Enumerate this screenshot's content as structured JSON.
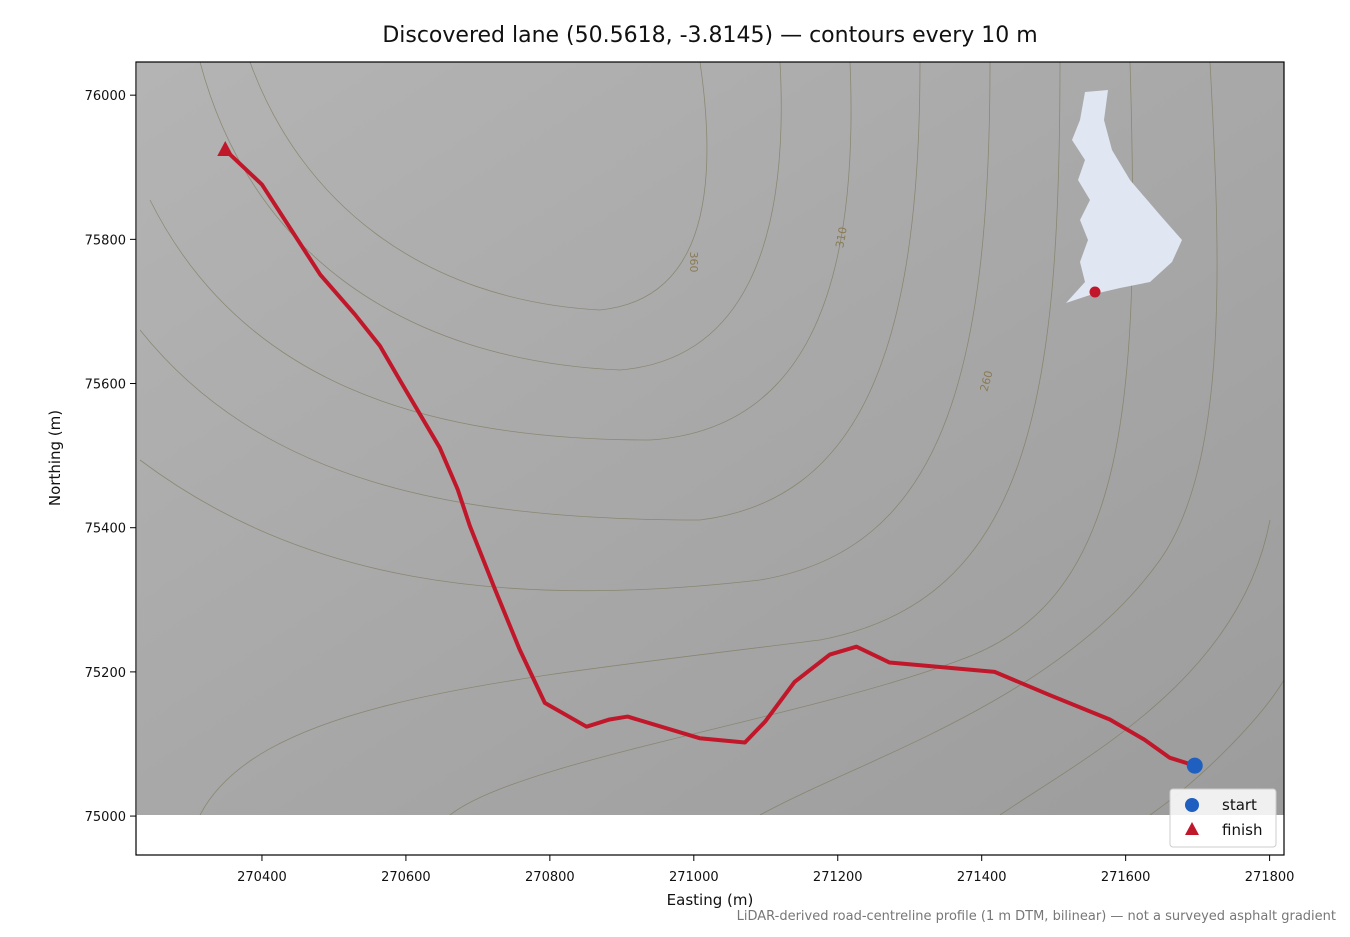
{
  "chart_data": {
    "type": "route-map",
    "title": "Discovered lane (50.5618, -3.8145) — contours every 10 m",
    "x_label": "Easting (m)",
    "y_label": "Northing (m)",
    "footnote": "LiDAR-derived road-centreline profile (1 m DTM, bilinear) — not a surveyed asphalt gradient",
    "xlim": [
      270225,
      271820
    ],
    "ylim": [
      74946,
      76046
    ],
    "xticks": [
      270400,
      270600,
      270800,
      271000,
      271200,
      271400,
      271600,
      271800
    ],
    "yticks": [
      75000,
      75200,
      75400,
      75600,
      75800,
      76000
    ],
    "contour_labels": [
      360,
      310,
      260
    ],
    "lane": {
      "color": "#c0182a",
      "x": [
        270349,
        270400,
        270481,
        270529,
        270564,
        270599,
        270647,
        270672,
        270689,
        270724,
        270758,
        270793,
        270851,
        270883,
        270908,
        271008,
        271071,
        271099,
        271140,
        271189,
        271226,
        271272,
        271418,
        271494,
        271578,
        271626,
        271661,
        271696
      ],
      "y": [
        75924,
        75876,
        75751,
        75696,
        75652,
        75592,
        75511,
        75453,
        75402,
        75314,
        75231,
        75157,
        75124,
        75134,
        75138,
        75108,
        75102,
        75131,
        75186,
        75224,
        75235,
        75213,
        75200,
        75168,
        75134,
        75106,
        75081,
        75070
      ]
    },
    "markers": [
      {
        "name": "start",
        "marker": "circle",
        "color": "#1f5fbf",
        "x": 271696,
        "y": 75070
      },
      {
        "name": "finish",
        "marker": "triangle",
        "color": "#c0182a",
        "x": 270349,
        "y": 75924
      }
    ],
    "legend": "lower right"
  }
}
